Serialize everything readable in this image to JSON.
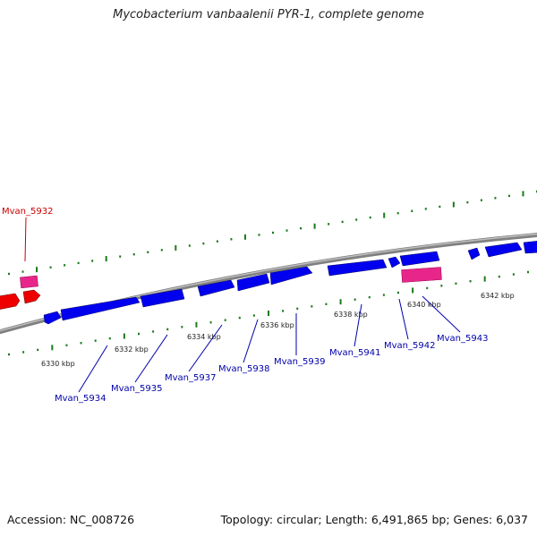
{
  "title": "Mycobacterium vanbaalenii PYR-1, complete genome",
  "footer": {
    "accession": "Accession: NC_008726",
    "summary": "Topology: circular; Length: 6,491,865 bp; Genes: 6,037"
  },
  "colors": {
    "backbone": "#808080",
    "ticks": "#1a7a1a",
    "gene_forward": "#0000ee",
    "gene_reverse": "#ee0000",
    "rna": "#e8268a",
    "label_cds": "#0000aa",
    "label_other": "#cc0000"
  },
  "kbp_ticks": [
    {
      "label": "6330 kbp",
      "pos": 6330
    },
    {
      "label": "6332 kbp",
      "pos": 6332
    },
    {
      "label": "6334 kbp",
      "pos": 6334
    },
    {
      "label": "6336 kbp",
      "pos": 6336
    },
    {
      "label": "6338 kbp",
      "pos": 6338
    },
    {
      "label": "6340 kbp",
      "pos": 6340
    },
    {
      "label": "6342 kbp",
      "pos": 6342
    }
  ],
  "gene_labels": [
    {
      "text": "Mvan_5932",
      "color": "#cc0000"
    },
    {
      "text": "Mvan_5934",
      "color": "#0000aa"
    },
    {
      "text": "Mvan_5935",
      "color": "#0000aa"
    },
    {
      "text": "Mvan_5937",
      "color": "#0000aa"
    },
    {
      "text": "Mvan_5938",
      "color": "#0000aa"
    },
    {
      "text": "Mvan_5939",
      "color": "#0000aa"
    },
    {
      "text": "Mvan_5941",
      "color": "#0000aa"
    },
    {
      "text": "Mvan_5942",
      "color": "#0000aa"
    },
    {
      "text": "Mvan_5943",
      "color": "#0000aa"
    }
  ]
}
